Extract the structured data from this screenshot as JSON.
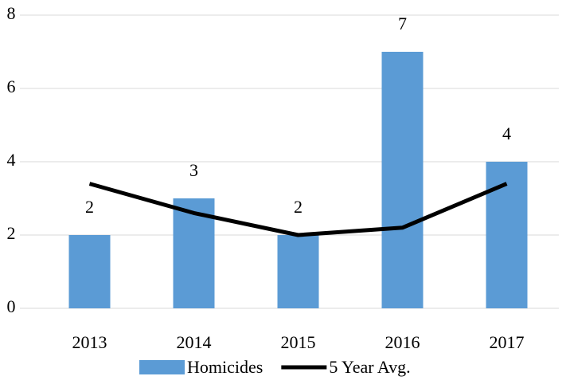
{
  "chart_data": {
    "type": "bar",
    "categories": [
      "2013",
      "2014",
      "2015",
      "2016",
      "2017"
    ],
    "series": [
      {
        "name": "Homicides",
        "type": "bar",
        "color": "#5b9bd5",
        "values": [
          2,
          3,
          2,
          7,
          4
        ]
      },
      {
        "name": "5 Year Avg.",
        "type": "line",
        "color": "#000000",
        "values": [
          3.4,
          2.6,
          2.0,
          2.2,
          3.4
        ]
      }
    ],
    "ylim": [
      0,
      8
    ],
    "yticks": [
      0,
      2,
      4,
      6,
      8
    ],
    "grid": true,
    "legend": "bottom"
  }
}
